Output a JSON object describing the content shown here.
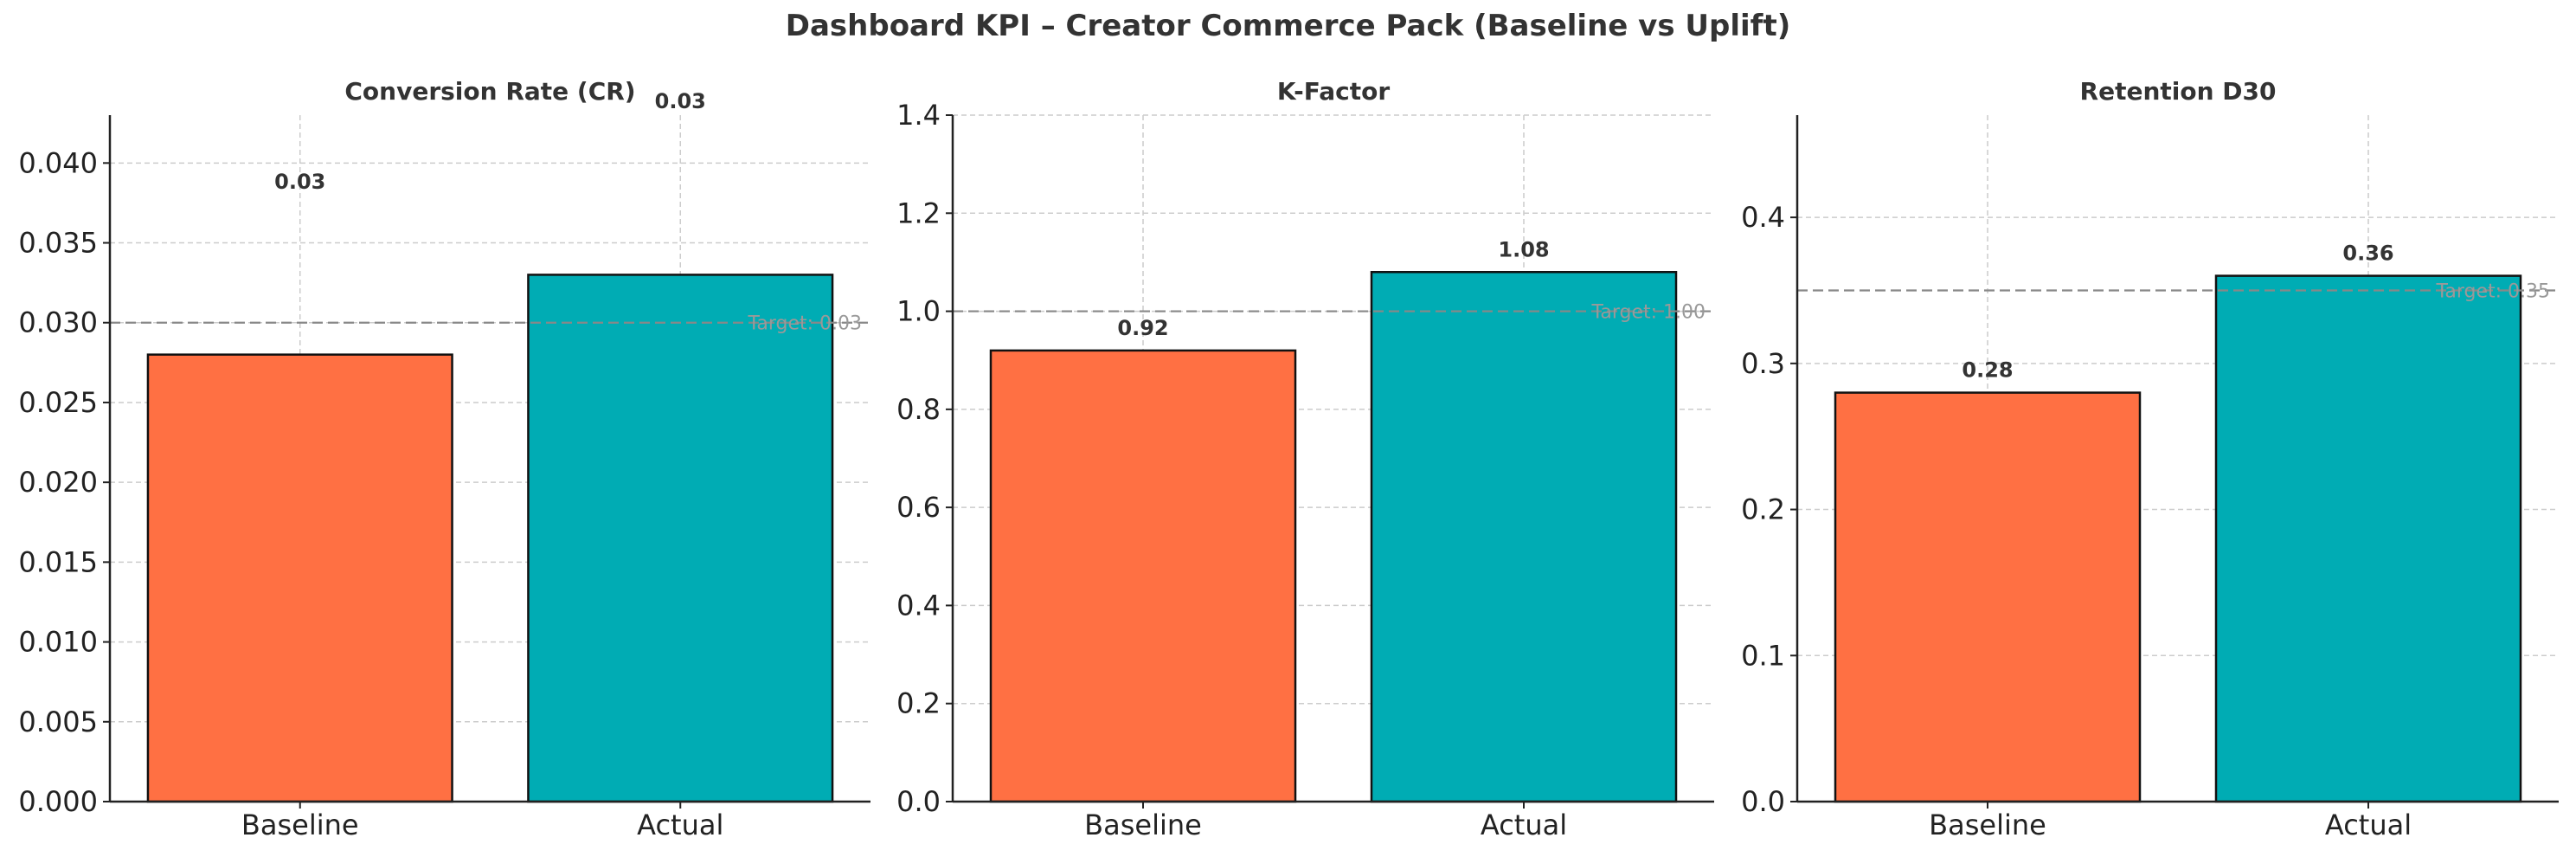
{
  "title": "Dashboard KPI – Creator Commerce Pack (Baseline vs Uplift)",
  "colors": {
    "baseline": "#FF7043",
    "actual": "#00ACB4",
    "target_line": "#888888",
    "grid": "#cccccc"
  },
  "chart_data": [
    {
      "type": "bar",
      "title": "Conversion Rate (CR)",
      "categories": [
        "Baseline",
        "Actual"
      ],
      "values": [
        0.028,
        0.033
      ],
      "value_labels": [
        "0.03",
        "0.03"
      ],
      "ylim": [
        0,
        0.043
      ],
      "yticks": [
        "0.000",
        "0.005",
        "0.010",
        "0.015",
        "0.020",
        "0.025",
        "0.030",
        "0.035",
        "0.040"
      ],
      "ytick_values": [
        0,
        0.005,
        0.01,
        0.015,
        0.02,
        0.025,
        0.03,
        0.035,
        0.04
      ],
      "target": 0.03,
      "target_label": "Target: 0.03",
      "grid": true
    },
    {
      "type": "bar",
      "title": "K-Factor",
      "categories": [
        "Baseline",
        "Actual"
      ],
      "values": [
        0.92,
        1.08
      ],
      "value_labels": [
        "0.92",
        "1.08"
      ],
      "ylim": [
        0,
        1.4
      ],
      "yticks": [
        "0.0",
        "0.2",
        "0.4",
        "0.6",
        "0.8",
        "1.0",
        "1.2",
        "1.4"
      ],
      "ytick_values": [
        0,
        0.2,
        0.4,
        0.6,
        0.8,
        1.0,
        1.2,
        1.4
      ],
      "target": 1.0,
      "target_label": "Target: 1.00",
      "grid": true
    },
    {
      "type": "bar",
      "title": "Retention D30",
      "categories": [
        "Baseline",
        "Actual"
      ],
      "values": [
        0.28,
        0.36
      ],
      "value_labels": [
        "0.28",
        "0.36"
      ],
      "ylim": [
        0,
        0.47
      ],
      "yticks": [
        "0.0",
        "0.1",
        "0.2",
        "0.3",
        "0.4"
      ],
      "ytick_values": [
        0,
        0.1,
        0.2,
        0.3,
        0.4
      ],
      "target": 0.35,
      "target_label": "Target: 0.35",
      "grid": true
    }
  ]
}
